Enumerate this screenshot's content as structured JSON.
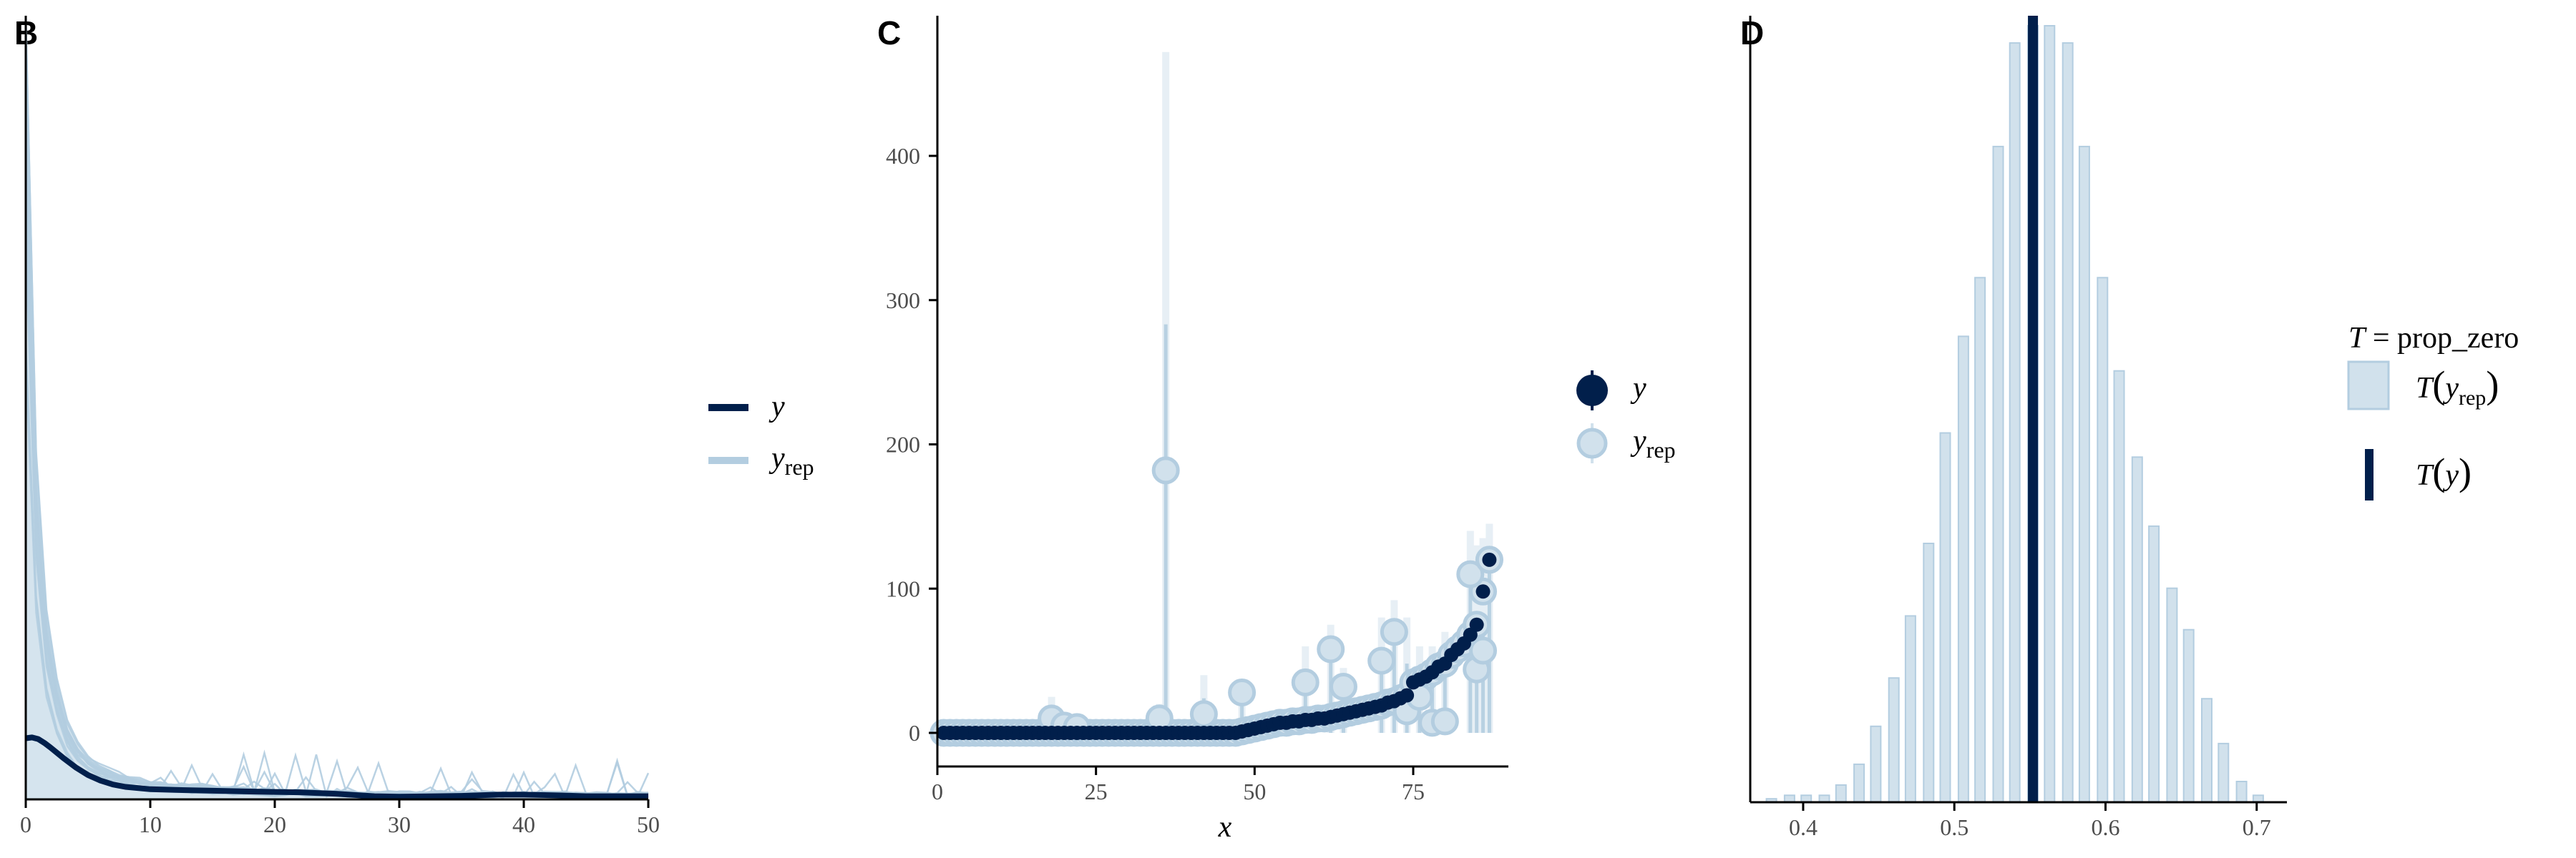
{
  "colors": {
    "dark": "#011f4b",
    "light": "#b3cde0",
    "light_fill": "#d1e1ec",
    "pale": "#e7eff5",
    "axis": "#000000",
    "tick_text": "#4d4d4d"
  },
  "chart_data": [
    {
      "panel": "B",
      "type": "line",
      "title": "",
      "xlabel": "",
      "ylabel": "",
      "xlim": [
        0,
        50
      ],
      "xticks": [
        "0",
        "10",
        "20",
        "30",
        "40",
        "50"
      ],
      "legend": {
        "position": "right",
        "entries": [
          "y",
          "yrep"
        ]
      },
      "series": [
        {
          "name": "y",
          "x": [
            0,
            0.5,
            1,
            1.5,
            2,
            3,
            4,
            5,
            6,
            7,
            8,
            10,
            12,
            15,
            18,
            20,
            22,
            25,
            28,
            30,
            33,
            35,
            38,
            40,
            43,
            45,
            48,
            50
          ],
          "density": [
            0.078,
            0.079,
            0.077,
            0.072,
            0.066,
            0.053,
            0.041,
            0.031,
            0.024,
            0.019,
            0.016,
            0.013,
            0.012,
            0.011,
            0.01,
            0.0095,
            0.009,
            0.007,
            0.004,
            0.0035,
            0.004,
            0.0045,
            0.006,
            0.006,
            0.005,
            0.004,
            0.004,
            0.004
          ]
        },
        {
          "name": "yrep",
          "x": [
            0,
            0.1,
            0.3,
            0.5,
            1,
            1.5,
            2,
            3,
            4,
            5,
            6,
            8,
            10,
            15,
            20,
            25,
            30,
            35,
            40,
            45,
            50
          ],
          "density": [
            1.0,
            0.86,
            0.68,
            0.55,
            0.38,
            0.26,
            0.19,
            0.11,
            0.075,
            0.055,
            0.042,
            0.03,
            0.022,
            0.016,
            0.012,
            0.009,
            0.008,
            0.008,
            0.008,
            0.007,
            0.007
          ]
        }
      ]
    },
    {
      "panel": "C",
      "type": "scatter",
      "title": "",
      "xlabel": "x",
      "ylabel": "",
      "xlim": [
        0,
        90
      ],
      "ylim": [
        0,
        480
      ],
      "xticks": [
        "0",
        "25",
        "50",
        "75"
      ],
      "yticks": [
        "0",
        "100",
        "200",
        "300",
        "400"
      ],
      "legend": {
        "position": "right",
        "entries": [
          "y",
          "yrep"
        ]
      },
      "series": [
        {
          "name": "y",
          "x": [
            1,
            2,
            3,
            4,
            5,
            6,
            7,
            8,
            9,
            10,
            11,
            12,
            13,
            14,
            15,
            16,
            17,
            18,
            19,
            20,
            21,
            22,
            23,
            24,
            25,
            26,
            27,
            28,
            29,
            30,
            31,
            32,
            33,
            34,
            35,
            36,
            37,
            38,
            39,
            40,
            41,
            42,
            43,
            44,
            45,
            46,
            47,
            48,
            49,
            50,
            51,
            52,
            53,
            54,
            55,
            56,
            57,
            58,
            59,
            60,
            61,
            62,
            63,
            64,
            65,
            66,
            67,
            68,
            69,
            70,
            71,
            72,
            73,
            74,
            75,
            76,
            77,
            78,
            79,
            80,
            81,
            82,
            83,
            84,
            85,
            86,
            87
          ],
          "y": [
            0,
            0,
            0,
            0,
            0,
            0,
            0,
            0,
            0,
            0,
            0,
            0,
            0,
            0,
            0,
            0,
            0,
            0,
            0,
            0,
            0,
            0,
            0,
            0,
            0,
            0,
            0,
            0,
            0,
            0,
            0,
            0,
            0,
            0,
            0,
            0,
            0,
            0,
            0,
            0,
            0,
            0,
            0,
            0,
            0,
            0,
            0,
            1,
            2,
            3,
            4,
            5,
            6,
            7,
            7,
            8,
            8,
            9,
            9,
            10,
            10,
            11,
            12,
            13,
            14,
            15,
            16,
            17,
            18,
            19,
            21,
            22,
            24,
            26,
            35,
            37,
            39,
            42,
            46,
            48,
            54,
            58,
            62,
            68,
            75,
            98,
            120
          ]
        },
        {
          "name": "yrep",
          "x": [
            18,
            20,
            22,
            35,
            36,
            42,
            48,
            58,
            62,
            64,
            70,
            72,
            74,
            76,
            78,
            80,
            84,
            85,
            86,
            87
          ],
          "y": [
            10,
            5,
            4,
            10,
            182,
            13,
            28,
            35,
            58,
            32,
            50,
            70,
            15,
            25,
            7,
            8,
            110,
            44,
            57,
            120
          ],
          "interval_high": [
            25,
            12,
            10,
            20,
            472,
            40,
            35,
            60,
            75,
            45,
            80,
            92,
            80,
            60,
            60,
            70,
            140,
            130,
            135,
            145
          ]
        }
      ]
    },
    {
      "panel": "D",
      "type": "bar",
      "title": "",
      "xlabel": "",
      "ylabel": "",
      "xlim": [
        0.365,
        0.72
      ],
      "xticks": [
        "0.4",
        "0.5",
        "0.6",
        "0.7"
      ],
      "statistic_label": "T = prop_zero",
      "legend": {
        "position": "right",
        "entries": [
          "T(yrep)",
          "T(y)"
        ]
      },
      "observed_T_y": 0.552,
      "bins": [
        0.379,
        0.391,
        0.402,
        0.414,
        0.425,
        0.437,
        0.448,
        0.46,
        0.471,
        0.483,
        0.494,
        0.506,
        0.517,
        0.529,
        0.54,
        0.552,
        0.563,
        0.575,
        0.586,
        0.598,
        0.609,
        0.621,
        0.632,
        0.644,
        0.655,
        0.667,
        0.678,
        0.69,
        0.701
      ],
      "counts": [
        1,
        2,
        2,
        2,
        5,
        11,
        22,
        36,
        54,
        75,
        107,
        135,
        152,
        190,
        220,
        225,
        225,
        220,
        190,
        152,
        125,
        100,
        80,
        62,
        50,
        30,
        17,
        6,
        2
      ]
    }
  ]
}
